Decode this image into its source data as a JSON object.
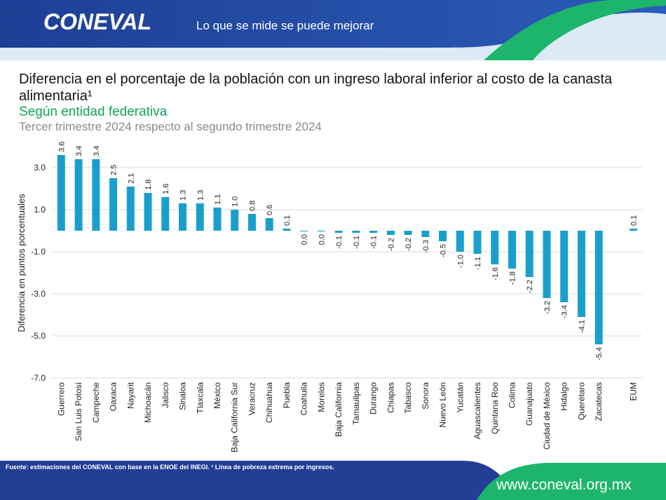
{
  "header": {
    "logo": "CONEVAL",
    "tagline": "Lo que se mide se puede mejorar"
  },
  "chart_data": {
    "type": "bar",
    "title": "Diferencia en el porcentaje de la población con un ingreso laboral inferior al costo de la canasta alimentaria¹",
    "subtitle": "Según entidad federativa",
    "subtitle2": "Tercer trimestre 2024 respecto al segundo trimestre 2024",
    "y_label": "Diferencia en puntos porcentuales",
    "categories": [
      "Guerrero",
      "San Luis Potosí",
      "Campeche",
      "Oaxaca",
      "Nayarit",
      "Michoacán",
      "Jalisco",
      "Sinaloa",
      "Tlaxcala",
      "México",
      "Baja California Sur",
      "Veracruz",
      "Chihuahua",
      "Puebla",
      "Coahuila",
      "Morelos",
      "Baja California",
      "Tamaulipas",
      "Durango",
      "Chiapas",
      "Tabasco",
      "Sonora",
      "Nuevo León",
      "Yucatán",
      "Aguascalientes",
      "Quintana Roo",
      "Colima",
      "Guanajuato",
      "Ciudad de México",
      "Hidalgo",
      "Querétaro",
      "Zacatecas",
      null,
      "EUM"
    ],
    "values": [
      3.6,
      3.4,
      3.4,
      2.5,
      2.1,
      1.8,
      1.6,
      1.3,
      1.3,
      1.1,
      1.0,
      0.8,
      0.6,
      0.1,
      0.0,
      0.0,
      -0.1,
      -0.1,
      -0.1,
      -0.2,
      -0.2,
      -0.3,
      -0.5,
      -1.0,
      -1.1,
      -1.6,
      -1.8,
      -2.2,
      -3.2,
      -3.4,
      -4.1,
      -5.4,
      null,
      0.1
    ],
    "value_labels": [
      "3.6",
      "3.4",
      "3.4",
      "2.5",
      "2.1",
      "1.8",
      "1.6",
      "1.3",
      "1.3",
      "1.1",
      "1.0",
      "0.8",
      "0.6",
      "0.1",
      "0.0",
      "0.0",
      "-0.1",
      "-0.1",
      "-0.1",
      "-0.2",
      "-0.2",
      "-0.3",
      "-0.5",
      "-1.0",
      "-1.1",
      "-1.6",
      "-1.8",
      "-2.2",
      "-3.2",
      "-3.4",
      "-4.1",
      "-5.4",
      null,
      "0.1"
    ],
    "color": "#1a9fcc",
    "ylim": [
      -7,
      4
    ],
    "yticks": [
      {
        "value": 3,
        "label": "3.0"
      },
      {
        "value": 1,
        "label": "1.0"
      },
      {
        "value": -1,
        "label": "-1.0"
      },
      {
        "value": -3,
        "label": "-3.0"
      },
      {
        "value": -5,
        "label": "-5.0"
      },
      {
        "value": -7,
        "label": "-7.0"
      }
    ],
    "grid": true
  },
  "footer": {
    "source": "Fuente: estimaciones del CONEVAL con base en la ENOE del INEGI. ¹ Línea de pobreza extrema por ingresos.",
    "url": "www.coneval.org.mx"
  }
}
